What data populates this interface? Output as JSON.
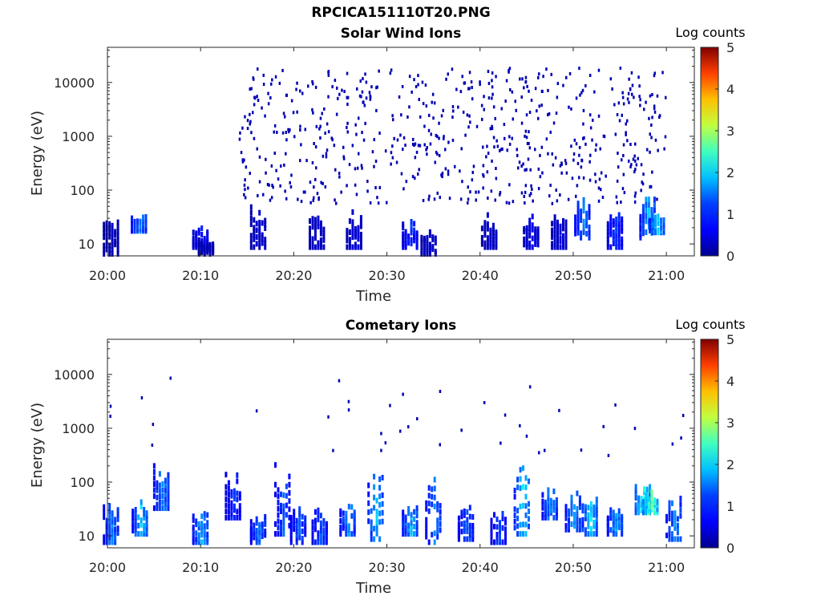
{
  "figure": {
    "title": "RPCICA151110T20.PNG"
  },
  "colors": {
    "axis": "#262626",
    "colormap": [
      "#00008f",
      "#0000ff",
      "#0080ff",
      "#00ffff",
      "#80ff80",
      "#ffff00",
      "#ff8000",
      "#ff0000",
      "#800000"
    ]
  },
  "chart_data": [
    {
      "type": "heatmap",
      "title": "Solar Wind Ions",
      "xlabel": "Time",
      "ylabel": "Energy (eV)",
      "x_tick_labels": [
        "20:00",
        "20:10",
        "20:20",
        "20:30",
        "20:40",
        "20:50",
        "21:00"
      ],
      "x_range_minutes": [
        0,
        63
      ],
      "y_scale": "log",
      "y_range": [
        6,
        45000
      ],
      "y_tick_labels": [
        "10",
        "100",
        "1000",
        "10000"
      ],
      "colorbar": {
        "label": "Log counts",
        "range": [
          0,
          5
        ],
        "tick_labels": [
          "0",
          "1",
          "2",
          "3",
          "4",
          "5"
        ]
      },
      "clusters": [
        {
          "t": 3.4,
          "e_low": 16,
          "e_high": 35,
          "log_counts": 1.5
        },
        {
          "t": 0.4,
          "e_low": 6,
          "e_high": 30,
          "log_counts": 0.3
        },
        {
          "t": 10.0,
          "e_low": 8,
          "e_high": 25,
          "log_counts": 0.8
        },
        {
          "t": 10.6,
          "e_low": 6,
          "e_high": 12,
          "log_counts": 0.3
        },
        {
          "t": 16.2,
          "e_low": 8,
          "e_high": 60,
          "log_counts": 0.4
        },
        {
          "t": 22.5,
          "e_low": 8,
          "e_high": 40,
          "log_counts": 0.4
        },
        {
          "t": 26.5,
          "e_low": 8,
          "e_high": 45,
          "log_counts": 0.5
        },
        {
          "t": 32.5,
          "e_low": 8,
          "e_high": 30,
          "log_counts": 1.0
        },
        {
          "t": 34.5,
          "e_low": 6,
          "e_high": 25,
          "log_counts": 0.4
        },
        {
          "t": 41.0,
          "e_low": 8,
          "e_high": 40,
          "log_counts": 0.4
        },
        {
          "t": 45.5,
          "e_low": 8,
          "e_high": 40,
          "log_counts": 0.6
        },
        {
          "t": 48.5,
          "e_low": 8,
          "e_high": 40,
          "log_counts": 0.5
        },
        {
          "t": 51.0,
          "e_low": 12,
          "e_high": 80,
          "log_counts": 1.4
        },
        {
          "t": 54.5,
          "e_low": 8,
          "e_high": 40,
          "log_counts": 1.0
        },
        {
          "t": 58.0,
          "e_low": 12,
          "e_high": 80,
          "log_counts": 1.7
        },
        {
          "t": 59.0,
          "e_low": 15,
          "e_high": 40,
          "log_counts": 1.9
        }
      ],
      "scatter": {
        "t_range": [
          14,
          60
        ],
        "e_range": [
          60,
          20000
        ],
        "count": 650,
        "log_counts": 0.2
      }
    },
    {
      "type": "heatmap",
      "title": "Cometary Ions",
      "xlabel": "Time",
      "ylabel": "Energy (eV)",
      "x_tick_labels": [
        "20:00",
        "20:10",
        "20:20",
        "20:30",
        "20:40",
        "20:50",
        "21:00"
      ],
      "x_range_minutes": [
        0,
        63
      ],
      "y_scale": "log",
      "y_range": [
        6,
        45000
      ],
      "y_tick_labels": [
        "10",
        "100",
        "1000",
        "10000"
      ],
      "colorbar": {
        "label": "Log counts",
        "range": [
          0,
          5
        ],
        "tick_labels": [
          "0",
          "1",
          "2",
          "3",
          "4",
          "5"
        ]
      },
      "clusters": [
        {
          "t": 0.4,
          "e_low": 7,
          "e_high": 45,
          "log_counts": 1.4
        },
        {
          "t": 3.5,
          "e_low": 10,
          "e_high": 60,
          "log_counts": 1.8
        },
        {
          "t": 5.8,
          "e_low": 30,
          "e_high": 250,
          "log_counts": 1.5
        },
        {
          "t": 10.0,
          "e_low": 7,
          "e_high": 40,
          "log_counts": 1.6
        },
        {
          "t": 13.5,
          "e_low": 20,
          "e_high": 200,
          "log_counts": 1.0
        },
        {
          "t": 16.2,
          "e_low": 7,
          "e_high": 30,
          "log_counts": 1.3
        },
        {
          "t": 18.8,
          "e_low": 10,
          "e_high": 400,
          "log_counts": 1.2
        },
        {
          "t": 20.5,
          "e_low": 7,
          "e_high": 40,
          "log_counts": 1.2
        },
        {
          "t": 22.8,
          "e_low": 7,
          "e_high": 35,
          "log_counts": 1.2
        },
        {
          "t": 25.8,
          "e_low": 10,
          "e_high": 60,
          "log_counts": 1.5
        },
        {
          "t": 28.8,
          "e_low": 8,
          "e_high": 300,
          "log_counts": 1.7
        },
        {
          "t": 32.5,
          "e_low": 10,
          "e_high": 50,
          "log_counts": 1.7
        },
        {
          "t": 35.0,
          "e_low": 7,
          "e_high": 150,
          "log_counts": 1.4
        },
        {
          "t": 38.5,
          "e_low": 8,
          "e_high": 40,
          "log_counts": 1.2
        },
        {
          "t": 42.0,
          "e_low": 7,
          "e_high": 40,
          "log_counts": 1.1
        },
        {
          "t": 44.5,
          "e_low": 10,
          "e_high": 400,
          "log_counts": 1.9
        },
        {
          "t": 47.5,
          "e_low": 20,
          "e_high": 100,
          "log_counts": 1.5
        },
        {
          "t": 50.0,
          "e_low": 12,
          "e_high": 80,
          "log_counts": 1.6
        },
        {
          "t": 51.8,
          "e_low": 10,
          "e_high": 60,
          "log_counts": 1.9
        },
        {
          "t": 54.5,
          "e_low": 10,
          "e_high": 40,
          "log_counts": 1.6
        },
        {
          "t": 57.5,
          "e_low": 25,
          "e_high": 90,
          "log_counts": 2.3
        },
        {
          "t": 58.3,
          "e_low": 25,
          "e_high": 70,
          "log_counts": 2.8
        },
        {
          "t": 60.8,
          "e_low": 8,
          "e_high": 60,
          "log_counts": 1.5
        }
      ],
      "scatter": {
        "t_range": [
          0,
          62
        ],
        "e_range": [
          300,
          10000
        ],
        "count": 40,
        "log_counts": 0.2
      }
    }
  ]
}
